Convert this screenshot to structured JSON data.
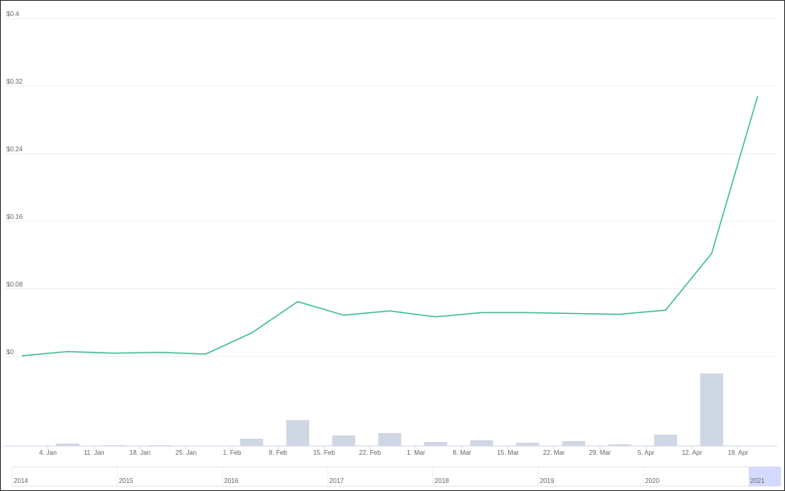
{
  "chart_data": {
    "type": "line",
    "x": [
      0,
      7,
      14,
      21,
      28,
      35,
      42,
      49,
      56,
      63,
      70,
      77,
      84,
      91,
      98,
      105,
      112
    ],
    "series": [
      {
        "color": "#3dbf8a",
        "values": [
          0.001,
          0.006,
          0.004,
          0.005,
          0.003,
          0.028,
          0.065,
          0.049,
          0.054,
          0.047,
          0.052,
          0.052,
          0.051,
          0.05,
          0.055,
          0.122,
          0.308
        ]
      }
    ],
    "volume": {
      "type": "bar",
      "color": "#cfd6e4",
      "values": [
        0,
        3,
        1,
        1,
        0.5,
        9,
        32,
        13,
        16,
        5,
        7,
        4,
        6,
        2,
        14,
        90,
        0
      ],
      "ylim": [
        0,
        90
      ]
    },
    "xlim": [
      0,
      112
    ],
    "xticks": [
      {
        "value": 4,
        "label": "4. Jan"
      },
      {
        "value": 11,
        "label": "11. Jan"
      },
      {
        "value": 18,
        "label": "18. Jan"
      },
      {
        "value": 25,
        "label": "25. Jan"
      },
      {
        "value": 32,
        "label": "1. Feb"
      },
      {
        "value": 39,
        "label": "8. Feb"
      },
      {
        "value": 46,
        "label": "15. Feb"
      },
      {
        "value": 53,
        "label": "22. Feb"
      },
      {
        "value": 60,
        "label": "1. Mar"
      },
      {
        "value": 67,
        "label": "8. Mar"
      },
      {
        "value": 74,
        "label": "15. Mar"
      },
      {
        "value": 81,
        "label": "22. Mar"
      },
      {
        "value": 88,
        "label": "29. Mar"
      },
      {
        "value": 95,
        "label": "5. Apr"
      },
      {
        "value": 102,
        "label": "12. Apr"
      },
      {
        "value": 109,
        "label": "19. Apr"
      }
    ],
    "ylim": [
      0,
      0.4
    ],
    "yticks": [
      {
        "value": 0,
        "label": "$0"
      },
      {
        "value": 0.08,
        "label": "$0.08"
      },
      {
        "value": 0.16,
        "label": "$0.16"
      },
      {
        "value": 0.24,
        "label": "$0.24"
      },
      {
        "value": 0.32,
        "label": "$0.32"
      },
      {
        "value": 0.4,
        "label": "$0.4"
      }
    ],
    "grid": true,
    "navigator": {
      "labels": [
        "2014",
        "2015",
        "2016",
        "2017",
        "2018",
        "2019",
        "2020",
        "2021"
      ]
    }
  }
}
